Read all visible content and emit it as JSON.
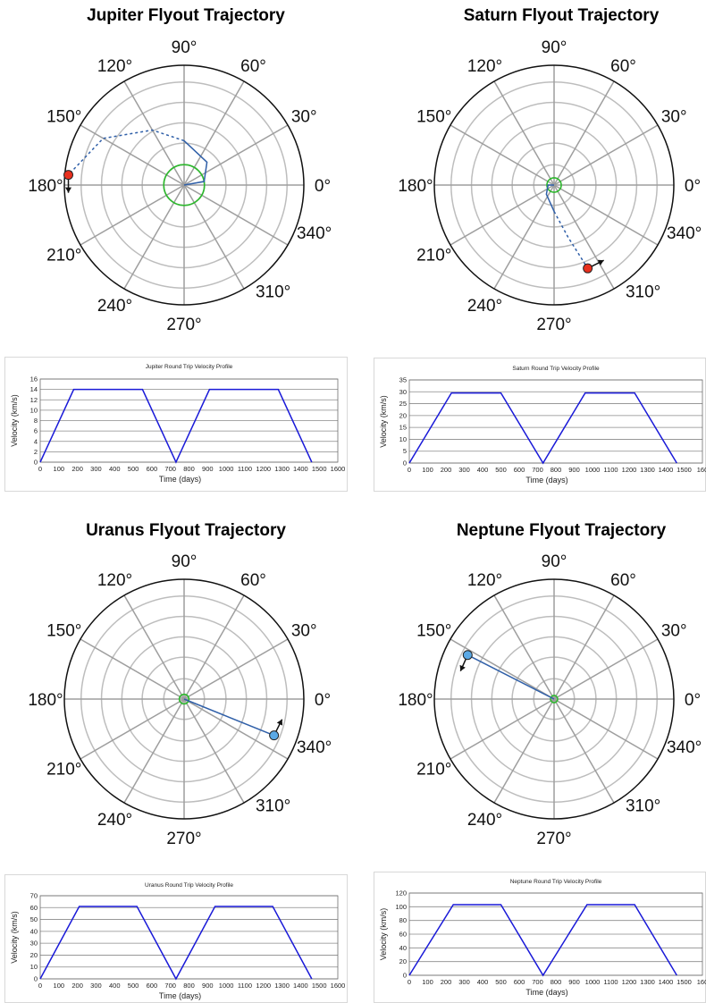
{
  "panels": [
    {
      "title": "Jupiter Flyout Trajectory",
      "angle_labels": [
        "0°",
        "30°",
        "60°",
        "90°",
        "120°",
        "150°",
        "180°",
        "210°",
        "240°",
        "270°",
        "310°",
        "340°"
      ],
      "planet_color": "#e8301e",
      "vp_title": "Jupiter Round Trip Velocity Profile",
      "vp_xlabel": "Time (days)",
      "vp_ylabel": "Velocity (km/s)",
      "vp_yticks": [
        "0",
        "2",
        "4",
        "6",
        "8",
        "10",
        "12",
        "14",
        "16"
      ],
      "vp_xticks": [
        "0",
        "100",
        "200",
        "300",
        "400",
        "500",
        "600",
        "700",
        "800",
        "900",
        "1000",
        "1100",
        "1200",
        "1300",
        "1400",
        "1500",
        "1600"
      ]
    },
    {
      "title": "Saturn Flyout Trajectory",
      "angle_labels": [
        "0°",
        "30°",
        "60°",
        "90°",
        "120°",
        "150°",
        "180°",
        "210°",
        "240°",
        "270°",
        "310°",
        "340°"
      ],
      "planet_color": "#e8301e",
      "vp_title": "Saturn Round Trip Velocity Profile",
      "vp_xlabel": "Time (days)",
      "vp_ylabel": "Velocity (km/s)",
      "vp_yticks": [
        "0",
        "5",
        "10",
        "15",
        "20",
        "25",
        "30",
        "35"
      ],
      "vp_xticks": [
        "0",
        "100",
        "200",
        "300",
        "400",
        "500",
        "600",
        "700",
        "800",
        "900",
        "1000",
        "1100",
        "1200",
        "1300",
        "1400",
        "1500",
        "160"
      ]
    },
    {
      "title": "Uranus Flyout Trajectory",
      "angle_labels": [
        "0°",
        "30°",
        "60°",
        "90°",
        "120°",
        "150°",
        "180°",
        "210°",
        "240°",
        "270°",
        "310°",
        "340°"
      ],
      "planet_color": "#5aa9e6",
      "vp_title": "Uranus Round Trip Velocity Profile",
      "vp_xlabel": "Time (days)",
      "vp_ylabel": "Velocity (km/s)",
      "vp_yticks": [
        "0",
        "10",
        "20",
        "30",
        "40",
        "50",
        "60",
        "70"
      ],
      "vp_xticks": [
        "0",
        "100",
        "200",
        "300",
        "400",
        "500",
        "600",
        "700",
        "800",
        "900",
        "1000",
        "1100",
        "1200",
        "1300",
        "1400",
        "1500",
        "1600"
      ]
    },
    {
      "title": "Neptune Flyout Trajectory",
      "angle_labels": [
        "0°",
        "30°",
        "60°",
        "90°",
        "120°",
        "150°",
        "180°",
        "210°",
        "240°",
        "270°",
        "310°",
        "340°"
      ],
      "planet_color": "#5aa9e6",
      "vp_title": "Neptune Round Trip Velocity Profile",
      "vp_xlabel": "Time (days)",
      "vp_ylabel": "Velocity (km/s)",
      "vp_yticks": [
        "0",
        "20",
        "40",
        "60",
        "80",
        "100",
        "120"
      ],
      "vp_xticks": [
        "0",
        "100",
        "200",
        "300",
        "400",
        "500",
        "600",
        "700",
        "800",
        "900",
        "1000",
        "1100",
        "1200",
        "1300",
        "1400",
        "1500",
        "160"
      ]
    }
  ],
  "chart_data": [
    {
      "type": "line",
      "title": "Jupiter Round Trip Velocity Profile",
      "xlabel": "Time (days)",
      "ylabel": "Velocity (km/s)",
      "xlim": [
        0,
        1600
      ],
      "ylim": [
        0,
        16
      ],
      "series": [
        {
          "x": [
            0,
            180,
            550,
            730,
            910,
            1280,
            1460
          ],
          "y": [
            0,
            14,
            14,
            0,
            14,
            14,
            0
          ]
        }
      ]
    },
    {
      "type": "line",
      "title": "Saturn Round Trip Velocity Profile",
      "xlabel": "Time (days)",
      "ylabel": "Velocity (km/s)",
      "xlim": [
        0,
        1600
      ],
      "ylim": [
        0,
        35
      ],
      "series": [
        {
          "x": [
            0,
            230,
            500,
            730,
            960,
            1230,
            1460
          ],
          "y": [
            0,
            29.5,
            29.5,
            0,
            29.5,
            29.5,
            0
          ]
        }
      ]
    },
    {
      "type": "line",
      "title": "Uranus Round Trip Velocity Profile",
      "xlabel": "Time (days)",
      "ylabel": "Velocity (km/s)",
      "xlim": [
        0,
        1600
      ],
      "ylim": [
        0,
        70
      ],
      "series": [
        {
          "x": [
            0,
            210,
            520,
            730,
            940,
            1250,
            1460
          ],
          "y": [
            0,
            61,
            61,
            0,
            61,
            61,
            0
          ]
        }
      ]
    },
    {
      "type": "line",
      "title": "Neptune Round Trip Velocity Profile",
      "xlabel": "Time (days)",
      "ylabel": "Velocity (km/s)",
      "xlim": [
        0,
        1600
      ],
      "ylim": [
        0,
        120
      ],
      "series": [
        {
          "x": [
            0,
            240,
            500,
            730,
            970,
            1230,
            1460
          ],
          "y": [
            0,
            103,
            103,
            0,
            103,
            103,
            0
          ]
        }
      ]
    },
    {
      "type": "scatter",
      "title": "Jupiter Flyout Trajectory",
      "planet_position": {
        "angle_deg": 175,
        "r_fraction": 0.97
      },
      "arrow_direction": "down",
      "orbit_r_fraction": 0.17,
      "series": [
        {
          "polar_points": [
            [
              0,
              0
            ],
            [
              10,
              0.17
            ],
            [
              45,
              0.27
            ],
            [
              90,
              0.37
            ],
            [
              120,
              0.53
            ],
            [
              150,
              0.78
            ],
            [
              175,
              0.97
            ]
          ]
        }
      ]
    },
    {
      "type": "scatter",
      "title": "Saturn Flyout Trajectory",
      "planet_position": {
        "angle_deg": 292,
        "r_fraction": 0.75
      },
      "arrow_direction": "right-up",
      "orbit_r_fraction": 0.06,
      "series": [
        {
          "polar_points": [
            [
              0,
              0
            ],
            [
              180,
              0.05
            ],
            [
              230,
              0.1
            ],
            [
              270,
              0.22
            ],
            [
              285,
              0.45
            ],
            [
              292,
              0.75
            ]
          ]
        }
      ]
    },
    {
      "type": "scatter",
      "title": "Uranus Flyout Trajectory",
      "planet_position": {
        "angle_deg": -22,
        "r_fraction": 0.81
      },
      "arrow_direction": "up",
      "orbit_r_fraction": 0.04,
      "series": [
        {
          "polar_points": [
            [
              0,
              0
            ],
            [
              -22,
              0.81
            ]
          ]
        }
      ]
    },
    {
      "type": "scatter",
      "title": "Neptune Flyout Trajectory",
      "planet_position": {
        "angle_deg": 153,
        "r_fraction": 0.81
      },
      "arrow_direction": "down-left",
      "orbit_r_fraction": 0.03,
      "series": [
        {
          "polar_points": [
            [
              0,
              0
            ],
            [
              153,
              0.81
            ]
          ]
        }
      ]
    }
  ]
}
